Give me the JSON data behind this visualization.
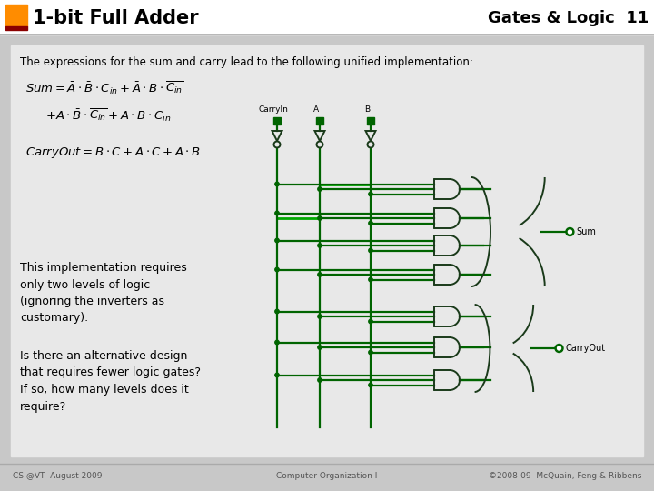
{
  "title_left": "1-bit Full Adder",
  "title_right": "Gates & Logic  11",
  "orange_box_color": "#FF8C00",
  "slide_bg": "#FFFFFF",
  "dark_red_bar": "#8B0000",
  "header_line_color": "#AAAAAA",
  "body_bg": "#C8C8C8",
  "inner_bg": "#E8E8E8",
  "text_color": "#000000",
  "gate_color": "#1A3A1A",
  "wire_color": "#006400",
  "wire_color_bright": "#00AA00",
  "node_color": "#006400",
  "footer_bg": "#C8C8C8",
  "footer_text_color": "#555555",
  "footer_text_left": "CS @VT  August 2009",
  "footer_text_center": "Computer Organization I",
  "footer_text_right": "©2008-09  McQuain, Feng & Ribbens",
  "intro_text": "The expressions for the sum and carry lead to the following unified implementation:",
  "body_text1": "This implementation requires\nonly two levels of logic\n(ignoring the inverters as\ncustomary).",
  "body_text2": "Is there an alternative design\nthat requires fewer logic gates?\nIf so, how many levels does it\nrequire?"
}
